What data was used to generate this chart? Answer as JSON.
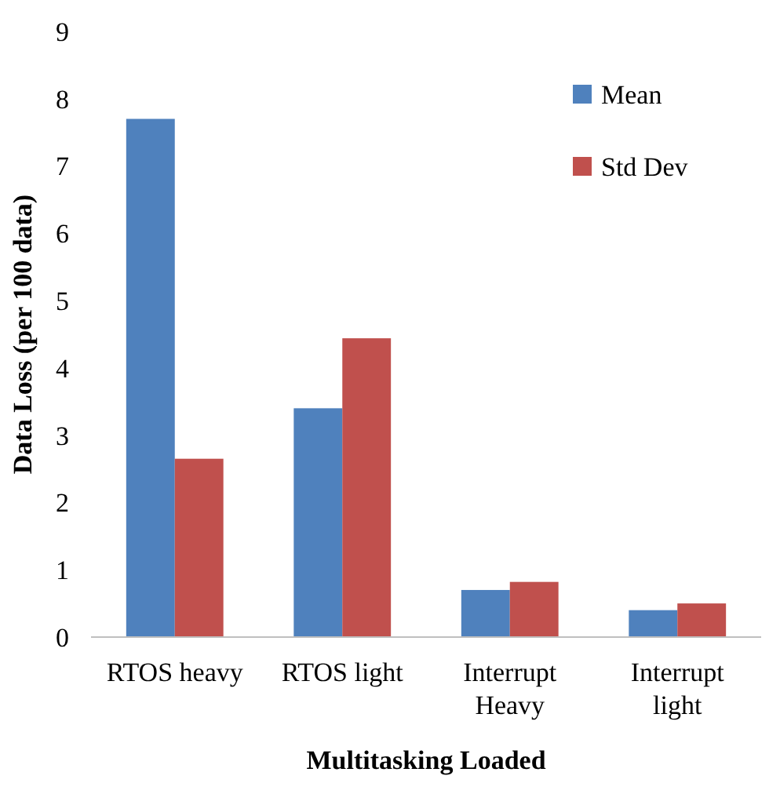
{
  "chart_data": {
    "type": "bar",
    "xlabel": "Multitasking Loaded",
    "ylabel": "Data Loss (per 100 data)",
    "categories": [
      "RTOS heavy",
      "RTOS light",
      "Interrupt Heavy",
      "Interrupt light"
    ],
    "series": [
      {
        "name": "Mean",
        "color": "#4f81bd",
        "values": [
          7.7,
          3.4,
          0.7,
          0.4
        ]
      },
      {
        "name": "Std Dev",
        "color": "#c0504d",
        "values": [
          2.65,
          4.44,
          0.82,
          0.5
        ]
      }
    ],
    "ylim": [
      0,
      9
    ],
    "yticks": [
      0,
      1,
      2,
      3,
      4,
      5,
      6,
      7,
      8,
      9
    ],
    "grid": false,
    "legend": "top right"
  }
}
